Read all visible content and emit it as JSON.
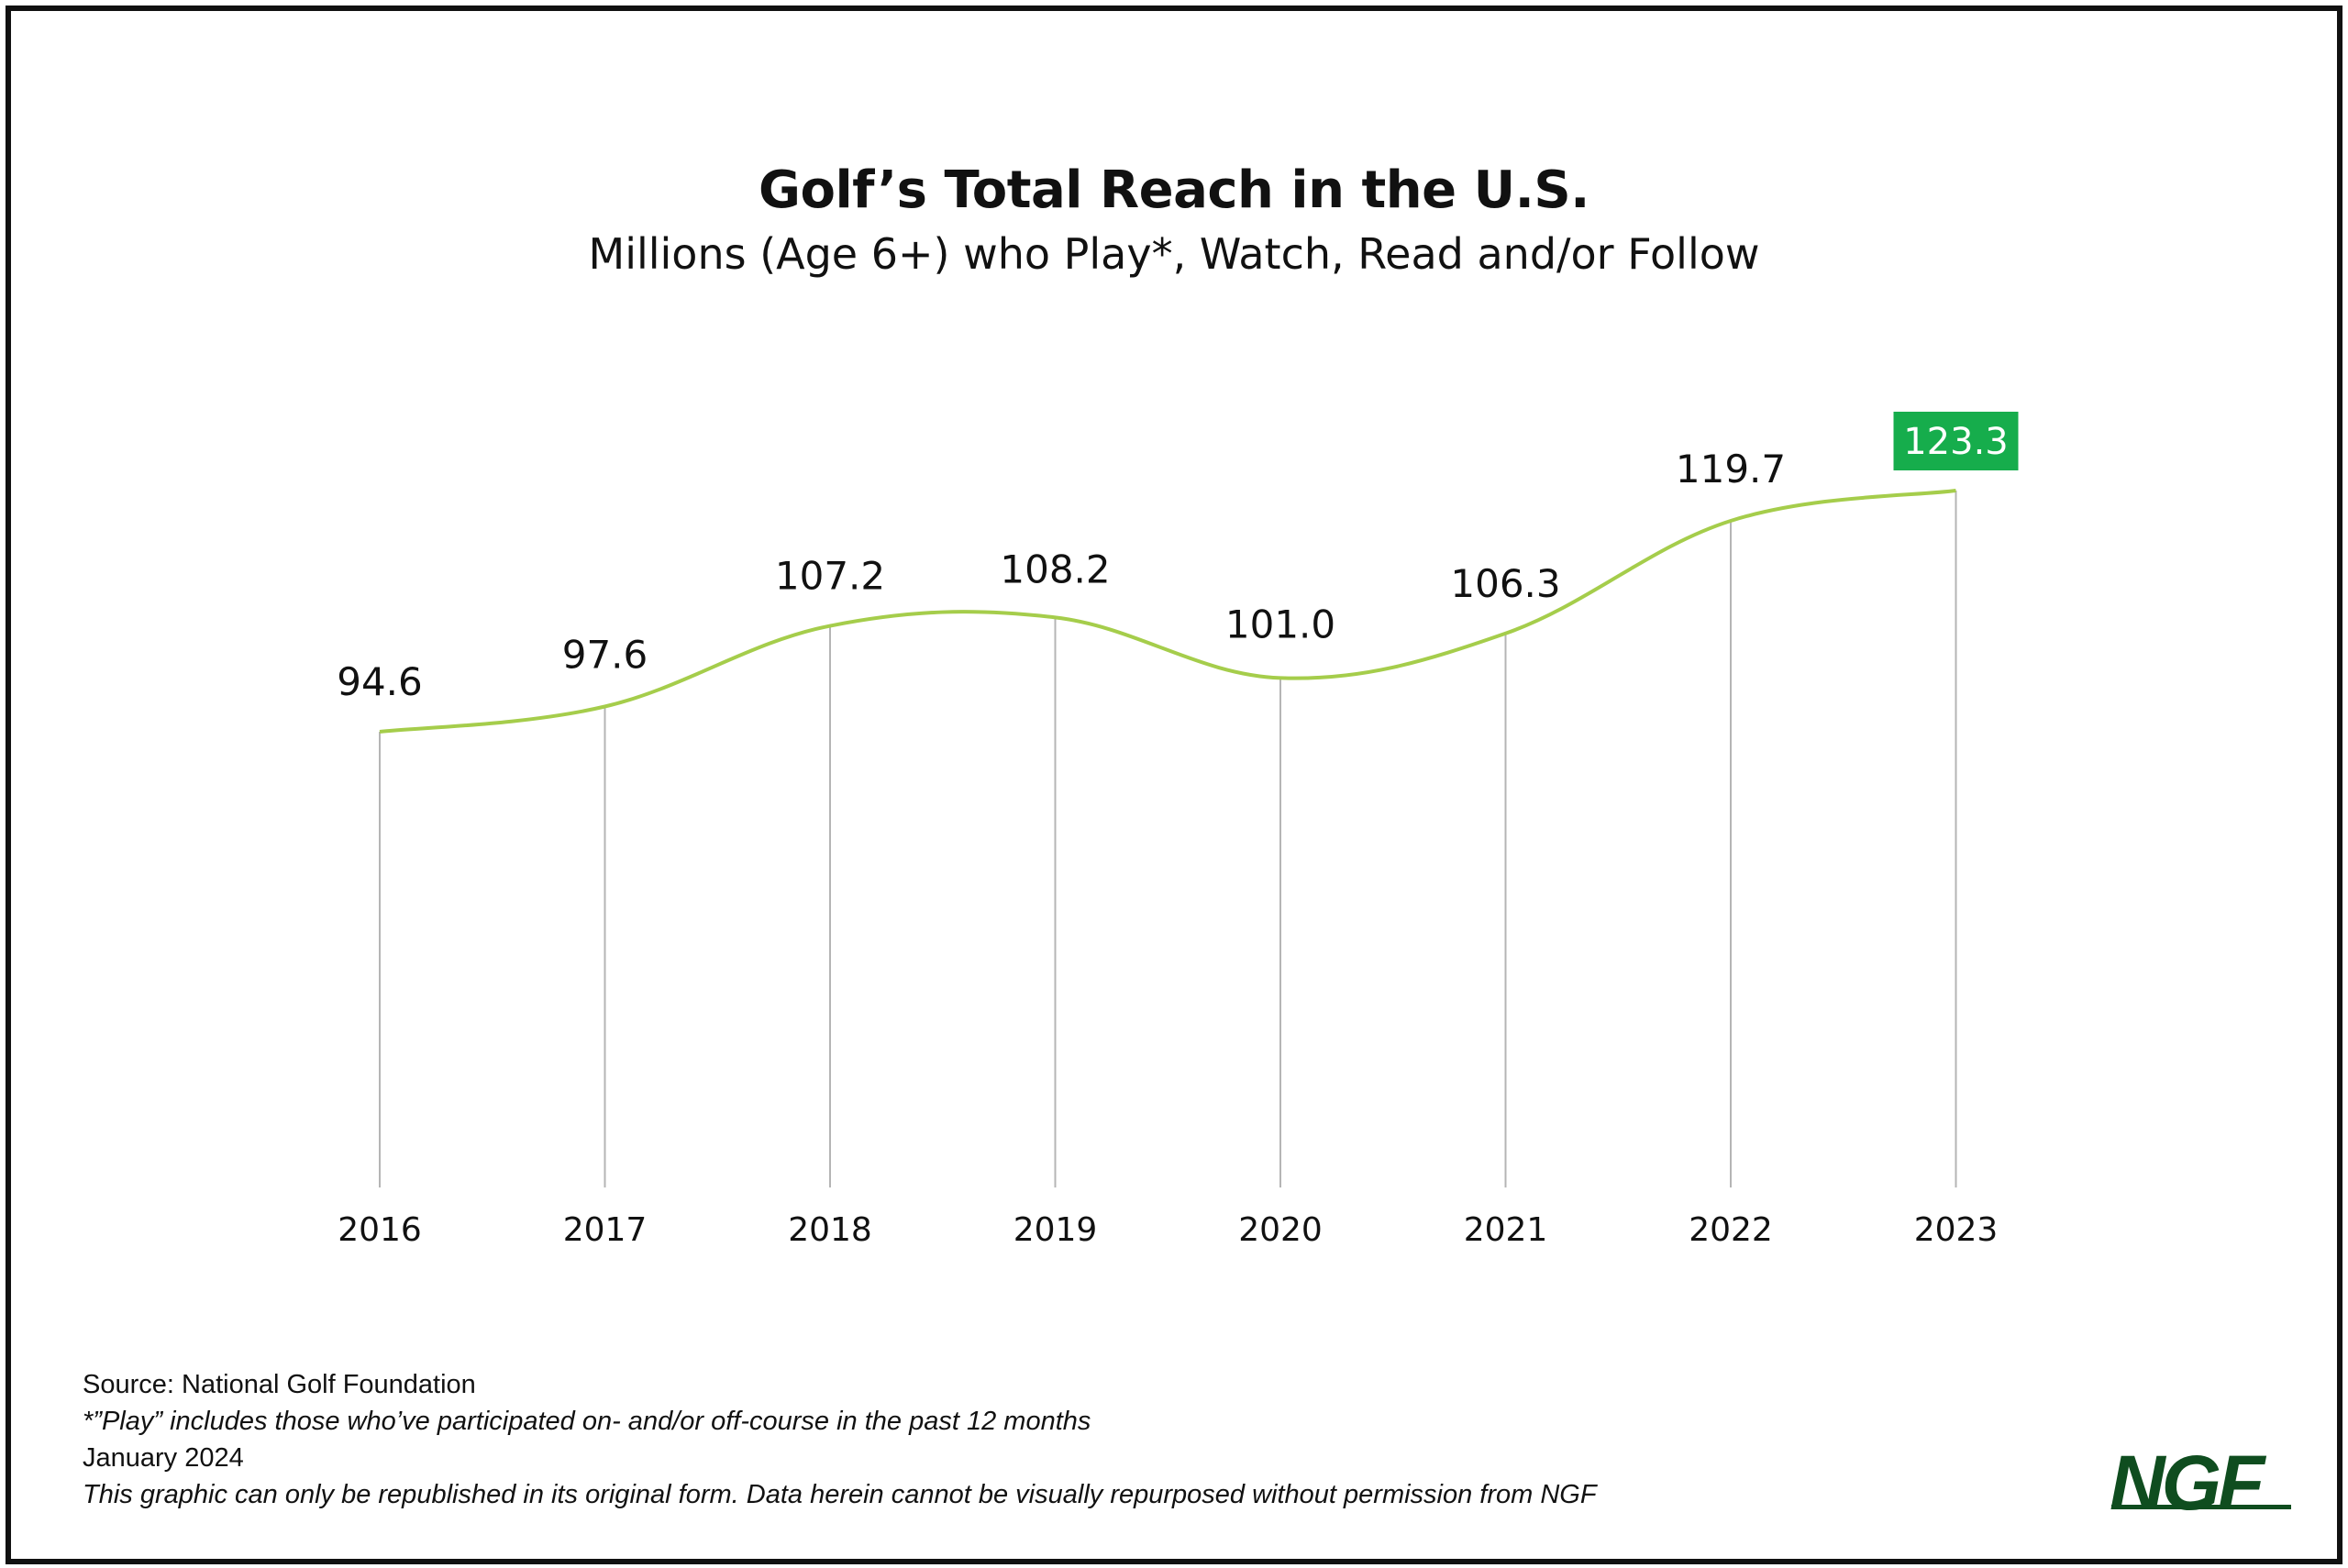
{
  "title": "Golf’s Total Reach in the U.S.",
  "subtitle": "Millions (Age 6+) who Play*, Watch, Read and/or Follow",
  "chart_data": {
    "type": "line",
    "title": "Golf’s Total Reach in the U.S.",
    "subtitle": "Millions (Age 6+) who Play*, Watch, Read and/or Follow",
    "categories": [
      "2016",
      "2017",
      "2018",
      "2019",
      "2020",
      "2021",
      "2022",
      "2023"
    ],
    "values": [
      94.6,
      97.6,
      107.2,
      108.2,
      101.0,
      106.3,
      119.7,
      123.3
    ],
    "value_labels": [
      "94.6",
      "97.6",
      "107.2",
      "108.2",
      "101.0",
      "106.3",
      "119.7",
      "123.3"
    ],
    "highlight_index": 7,
    "line_color": "#a5cd4b",
    "highlight_color": "#16ad4c",
    "grid": "vertical drop lines",
    "legend": "none"
  },
  "footer": {
    "source": "Source: National Golf Foundation",
    "note": "*”Play” includes those who’ve participated on- and/or off-course in the past 12 months",
    "date": "January 2024",
    "disclaimer": "This graphic can only be republished in its original form. Data herein cannot be visually repurposed without permission from NGF"
  },
  "logo": {
    "text": "NGF",
    "color": "#0f4d1f"
  }
}
